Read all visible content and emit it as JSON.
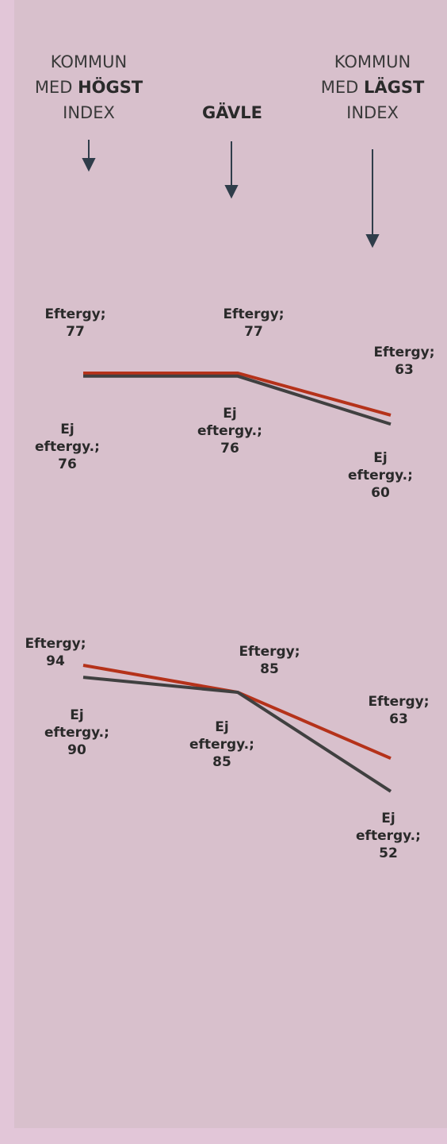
{
  "columns": [
    {
      "line1": "KOMMUN",
      "line2": "MED",
      "bold": "HÖGST",
      "line3": "INDEX"
    },
    {
      "bold": "GÄVLE"
    },
    {
      "line1": "KOMMUN",
      "line2": "MED",
      "bold": "LÄGST",
      "line3": "INDEX"
    }
  ],
  "chart_data": [
    {
      "type": "line",
      "series": [
        {
          "name": "Eftergy;",
          "color": "#b5321a",
          "values": [
            77,
            77,
            63
          ]
        },
        {
          "name": "Ej eftergy.;",
          "color": "#404040",
          "values": [
            76,
            76,
            60
          ]
        }
      ]
    },
    {
      "type": "line",
      "series": [
        {
          "name": "Eftergy;",
          "color": "#b5321a",
          "values": [
            94,
            85,
            63
          ]
        },
        {
          "name": "Ej eftergy.;",
          "color": "#404040",
          "values": [
            90,
            85,
            52
          ]
        }
      ]
    }
  ]
}
